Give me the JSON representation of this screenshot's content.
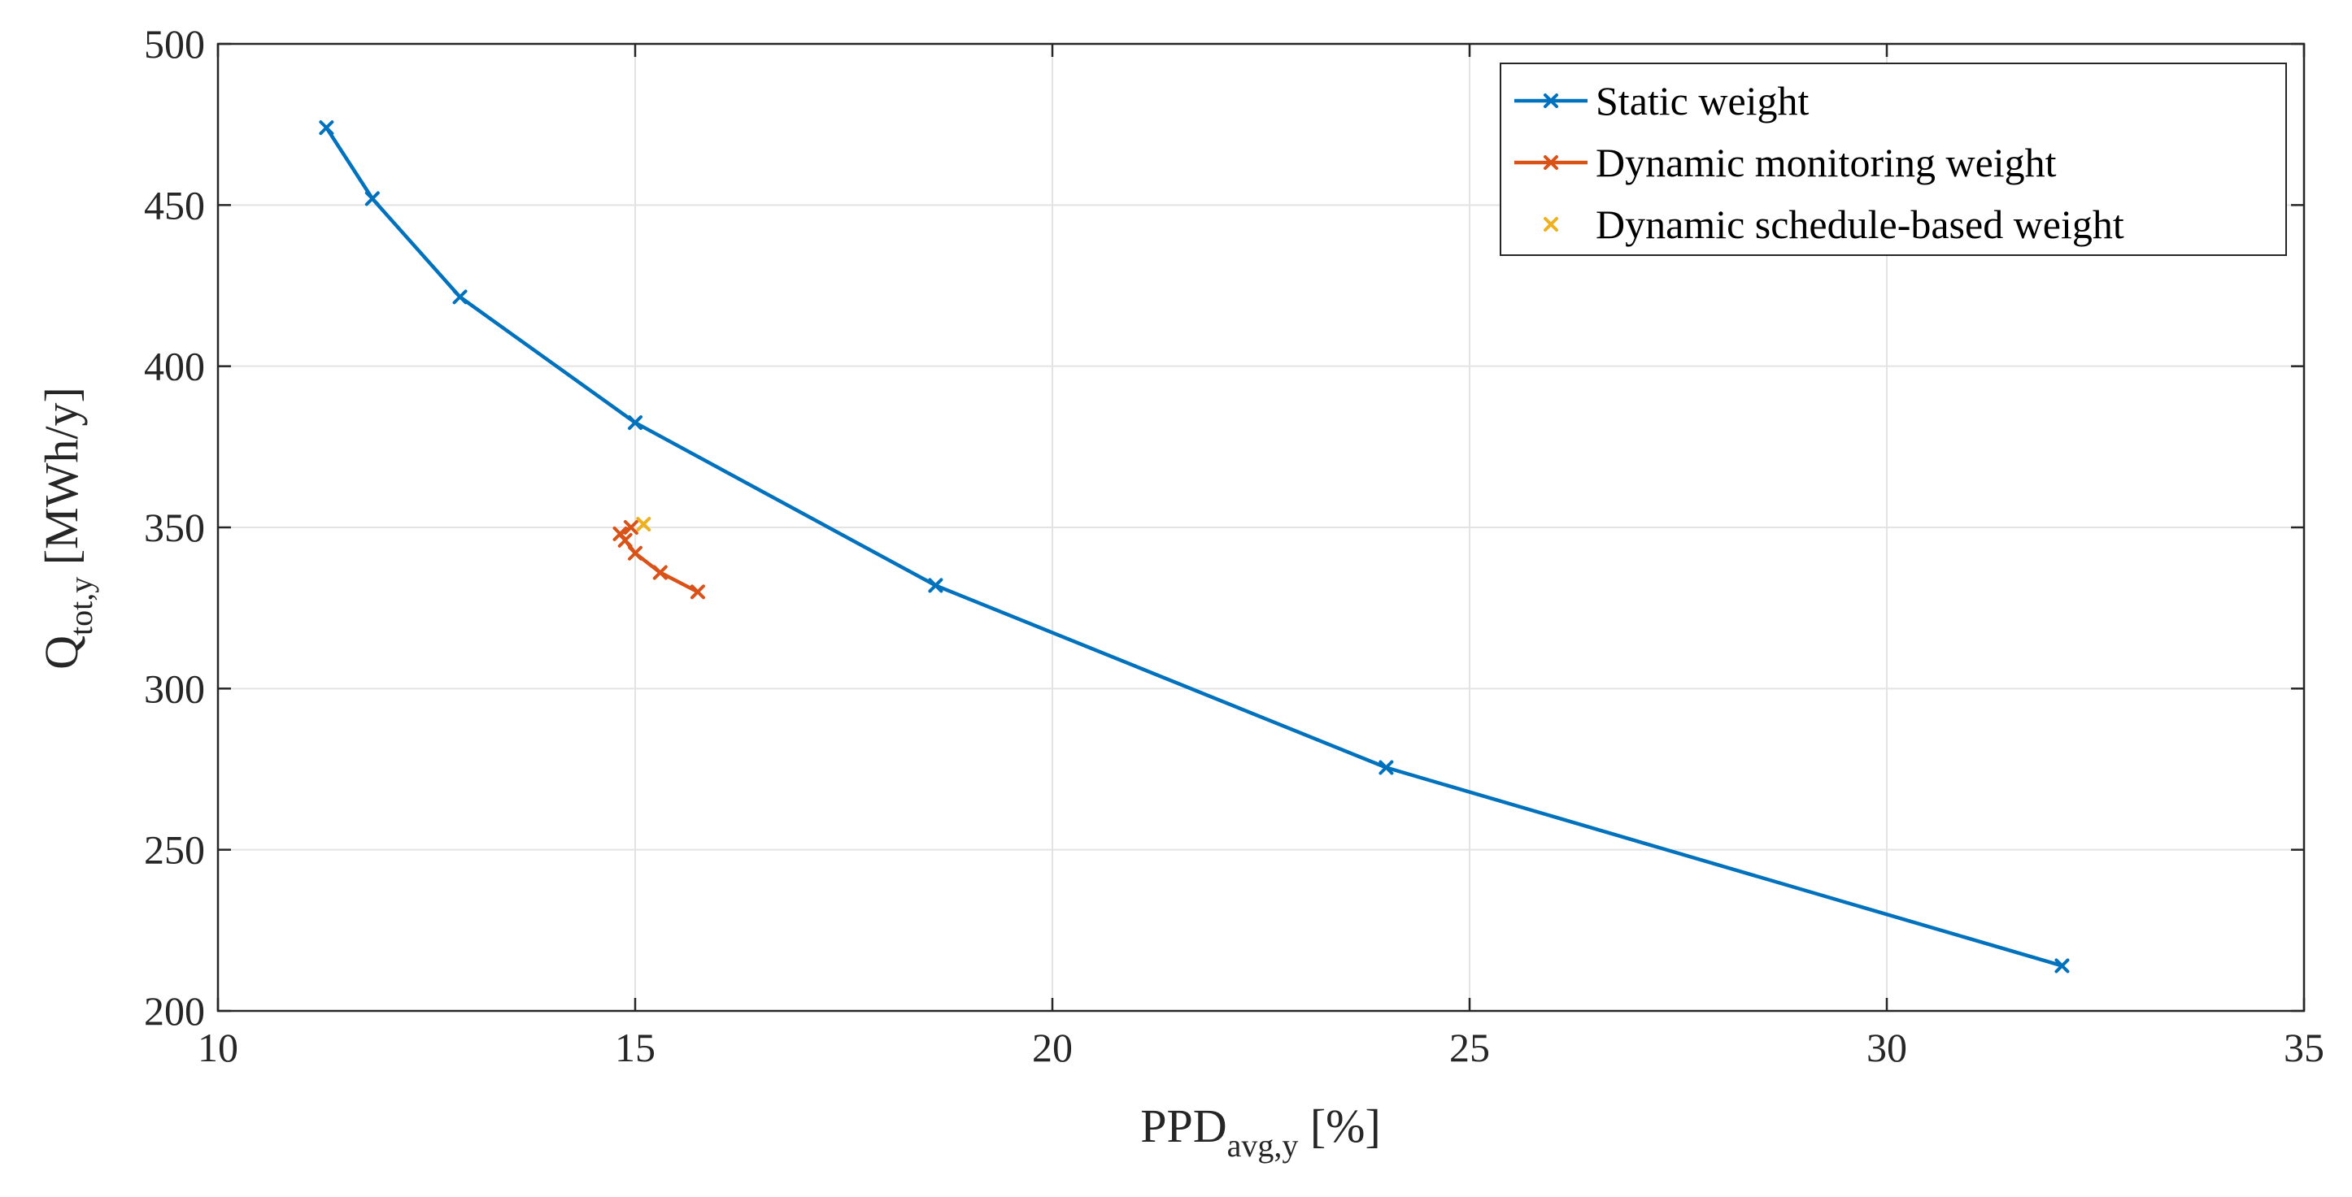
{
  "chart_data": {
    "type": "line",
    "title": "",
    "xlabel": {
      "main": "PPD",
      "sub": "avg,y",
      "unit": " [%]"
    },
    "ylabel": {
      "main": "Q",
      "sub": "tot,y",
      "unit": " [MWh/y]"
    },
    "xlim": [
      10,
      35
    ],
    "ylim": [
      200,
      500
    ],
    "xticks": [
      10,
      15,
      20,
      25,
      30,
      35
    ],
    "yticks": [
      200,
      250,
      300,
      350,
      400,
      450,
      500
    ],
    "grid": true,
    "legend_position": "top-right",
    "series": [
      {
        "name": "Static weight",
        "color": "#0072BD",
        "line": true,
        "marker": "x",
        "points": [
          [
            11.3,
            474
          ],
          [
            11.85,
            452
          ],
          [
            12.9,
            421.5
          ],
          [
            15.0,
            382.5
          ],
          [
            18.6,
            332
          ],
          [
            24.0,
            275.5
          ],
          [
            32.1,
            214
          ]
        ]
      },
      {
        "name": "Dynamic monitoring weight",
        "color": "#D95319",
        "line": true,
        "marker": "x",
        "points": [
          [
            14.95,
            350
          ],
          [
            14.82,
            348
          ],
          [
            14.88,
            346
          ],
          [
            15.0,
            342
          ],
          [
            15.3,
            336
          ],
          [
            15.75,
            330
          ]
        ]
      },
      {
        "name": "Dynamic schedule-based weight",
        "color": "#EDB120",
        "line": false,
        "marker": "x",
        "points": [
          [
            15.1,
            351
          ]
        ]
      }
    ]
  }
}
